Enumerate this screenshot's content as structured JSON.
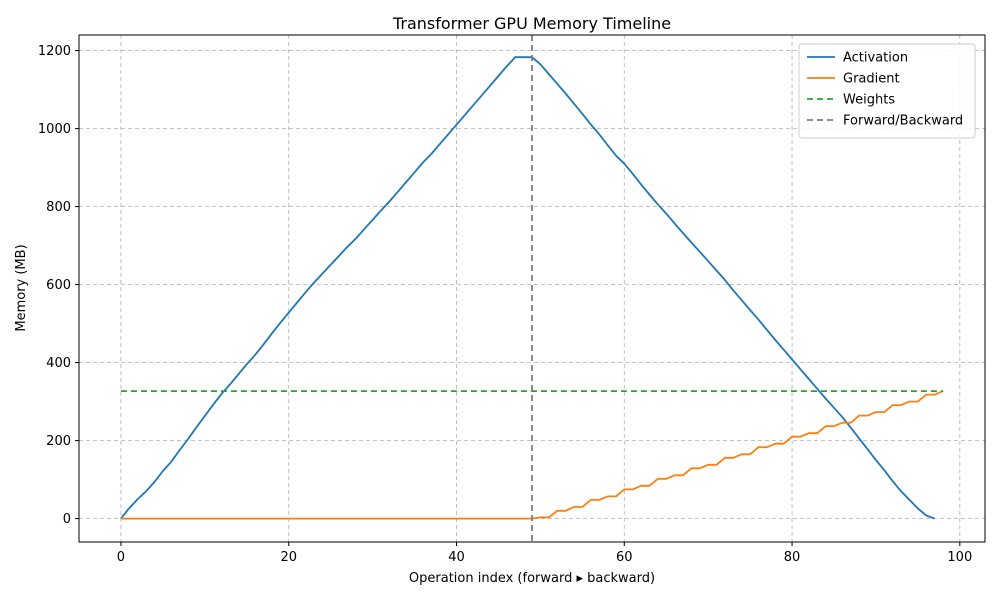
{
  "chart_data": {
    "type": "line",
    "title": "Transformer GPU Memory Timeline",
    "xlabel": "Operation index (forward ▸ backward)",
    "ylabel": "Memory (MB)",
    "xlim": [
      -5,
      103
    ],
    "ylim": [
      -60,
      1240
    ],
    "xticks": [
      0,
      20,
      40,
      60,
      80,
      100
    ],
    "yticks": [
      0,
      200,
      400,
      600,
      800,
      1000,
      1200
    ],
    "grid": true,
    "legend_position": "top-right",
    "series": [
      {
        "name": "Activation",
        "color": "#1f77b4",
        "style": "solid",
        "points": [
          [
            0,
            0
          ],
          [
            1,
            27
          ],
          [
            2,
            50
          ],
          [
            3,
            70
          ],
          [
            4,
            94
          ],
          [
            5,
            122
          ],
          [
            6,
            146
          ],
          [
            7,
            176
          ],
          [
            8,
            204
          ],
          [
            9,
            234
          ],
          [
            10,
            263
          ],
          [
            11,
            292
          ],
          [
            12,
            320
          ],
          [
            13,
            344
          ],
          [
            14,
            370
          ],
          [
            15,
            396
          ],
          [
            16,
            420
          ],
          [
            17,
            447
          ],
          [
            18,
            475
          ],
          [
            19,
            502
          ],
          [
            20,
            528
          ],
          [
            21,
            554
          ],
          [
            22,
            580
          ],
          [
            23,
            605
          ],
          [
            24,
            628
          ],
          [
            25,
            651
          ],
          [
            26,
            674
          ],
          [
            27,
            697
          ],
          [
            28,
            718
          ],
          [
            29,
            742
          ],
          [
            30,
            766
          ],
          [
            31,
            790
          ],
          [
            32,
            813
          ],
          [
            33,
            838
          ],
          [
            34,
            863
          ],
          [
            35,
            888
          ],
          [
            36,
            913
          ],
          [
            37,
            935
          ],
          [
            38,
            960
          ],
          [
            39,
            985
          ],
          [
            40,
            1010
          ],
          [
            41,
            1035
          ],
          [
            42,
            1060
          ],
          [
            43,
            1085
          ],
          [
            44,
            1110
          ],
          [
            45,
            1135
          ],
          [
            46,
            1160
          ],
          [
            47,
            1183
          ],
          [
            48,
            1183
          ],
          [
            49,
            1183
          ],
          [
            50,
            1165
          ],
          [
            51,
            1140
          ],
          [
            52,
            1115
          ],
          [
            53,
            1090
          ],
          [
            54,
            1064
          ],
          [
            55,
            1038
          ],
          [
            56,
            1011
          ],
          [
            57,
            986
          ],
          [
            58,
            958
          ],
          [
            59,
            931
          ],
          [
            60,
            910
          ],
          [
            61,
            884
          ],
          [
            62,
            857
          ],
          [
            63,
            831
          ],
          [
            64,
            806
          ],
          [
            65,
            782
          ],
          [
            66,
            757
          ],
          [
            67,
            732
          ],
          [
            68,
            708
          ],
          [
            69,
            684
          ],
          [
            70,
            660
          ],
          [
            71,
            636
          ],
          [
            72,
            612
          ],
          [
            73,
            585
          ],
          [
            74,
            560
          ],
          [
            75,
            535
          ],
          [
            76,
            510
          ],
          [
            77,
            484
          ],
          [
            78,
            458
          ],
          [
            79,
            433
          ],
          [
            80,
            408
          ],
          [
            81,
            383
          ],
          [
            82,
            358
          ],
          [
            83,
            333
          ],
          [
            84,
            308
          ],
          [
            85,
            284
          ],
          [
            86,
            260
          ],
          [
            87,
            233
          ],
          [
            88,
            205
          ],
          [
            89,
            178
          ],
          [
            90,
            150
          ],
          [
            91,
            124
          ],
          [
            92,
            96
          ],
          [
            93,
            70
          ],
          [
            94,
            48
          ],
          [
            95,
            26
          ],
          [
            96,
            8
          ],
          [
            97,
            0
          ]
        ]
      },
      {
        "name": "Gradient",
        "color": "#ff7f0e",
        "style": "solid",
        "points": [
          [
            0,
            0
          ],
          [
            49,
            0
          ],
          [
            50,
            3
          ],
          [
            51,
            3
          ],
          [
            52,
            20
          ],
          [
            53,
            20
          ],
          [
            54,
            30
          ],
          [
            55,
            30
          ],
          [
            56,
            48
          ],
          [
            57,
            48
          ],
          [
            58,
            57
          ],
          [
            59,
            57
          ],
          [
            60,
            75
          ],
          [
            61,
            75
          ],
          [
            62,
            84
          ],
          [
            63,
            84
          ],
          [
            64,
            102
          ],
          [
            65,
            102
          ],
          [
            66,
            111
          ],
          [
            67,
            111
          ],
          [
            68,
            129
          ],
          [
            69,
            129
          ],
          [
            70,
            138
          ],
          [
            71,
            138
          ],
          [
            72,
            156
          ],
          [
            73,
            156
          ],
          [
            74,
            165
          ],
          [
            75,
            165
          ],
          [
            76,
            183
          ],
          [
            77,
            183
          ],
          [
            78,
            192
          ],
          [
            79,
            192
          ],
          [
            80,
            210
          ],
          [
            81,
            210
          ],
          [
            82,
            219
          ],
          [
            83,
            219
          ],
          [
            84,
            237
          ],
          [
            85,
            237
          ],
          [
            86,
            246
          ],
          [
            87,
            246
          ],
          [
            88,
            264
          ],
          [
            89,
            264
          ],
          [
            90,
            273
          ],
          [
            91,
            273
          ],
          [
            92,
            291
          ],
          [
            93,
            291
          ],
          [
            94,
            300
          ],
          [
            95,
            300
          ],
          [
            96,
            318
          ],
          [
            97,
            318
          ],
          [
            98,
            327
          ]
        ]
      },
      {
        "name": "Weights",
        "color": "#2ca02c",
        "style": "dashed",
        "points": [
          [
            0,
            327
          ],
          [
            98,
            327
          ]
        ]
      },
      {
        "name": "Forward/Backward",
        "color": "#7f7f7f",
        "style": "dashed",
        "vline_x": 49
      }
    ]
  }
}
